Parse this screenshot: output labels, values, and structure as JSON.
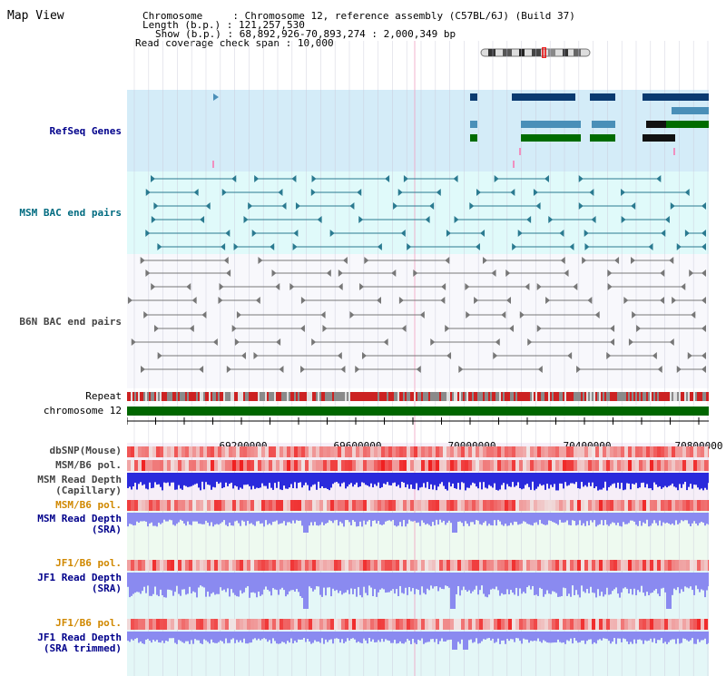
{
  "title": "Map View",
  "header": {
    "chromosome_label": "Chromosome",
    "chromosome_value": "Chromosome 12, reference assembly (C57BL/6J) (Build 37)",
    "length_label": "Length (b.p.)",
    "length_value": "121,257,530",
    "show_label": "Show (b.p.)",
    "show_value": "68,892,926-70,893,274 : 2,000,349 bp",
    "coverage_label": "Read coverage check span",
    "coverage_value": "10,000"
  },
  "tracks": {
    "refseq": "RefSeq Genes",
    "msm_bac": "MSM BAC end pairs",
    "b6n_bac": "B6N BAC end pairs",
    "repeat": "Repeat",
    "chromosome": "chromosome 12",
    "dbsnp": "dbSNP(Mouse)",
    "msm_b6_pol_1": "MSM/B6 pol.",
    "msm_read_depth_cap_1": "MSM Read Depth",
    "msm_read_depth_cap_2": "(Capillary)",
    "msm_b6_pol_2": "MSM/B6 pol.",
    "msm_read_depth_sra_1": "MSM Read Depth",
    "msm_read_depth_sra_2": "(SRA)",
    "jf1_b6_pol_1": "JF1/B6 pol.",
    "jf1_read_depth_sra_1": "JF1 Read Depth",
    "jf1_read_depth_sra_2": "(SRA)",
    "jf1_b6_pol_2": "JF1/B6 pol.",
    "jf1_read_depth_trim_1": "JF1 Read Depth",
    "jf1_read_depth_trim_2": "(SRA trimmed)"
  },
  "axis_ticks": [
    "69200000",
    "69600000",
    "70000000",
    "70400000",
    "70800000"
  ],
  "colors": {
    "refseq_bg": "#d4ecf8",
    "msm_bac_bg": "#e0fafa",
    "b6n_bg": "#f8f8fc",
    "sra_bg": "#eefaf0",
    "jf1_bg": "#e4f7f7",
    "gene_dark": "#0a3a70",
    "gene_mid": "#4a8fb8",
    "gene_green": "#006c00",
    "msm_line": "#2a7a90",
    "b6n_line": "#666666",
    "chromosome_bar": "#006600",
    "depth_blue": "#2a2adc",
    "depth_sra": "#8a8af0",
    "label_blue": "#00008b",
    "label_teal": "#006b80",
    "label_orange": "#d08800"
  }
}
